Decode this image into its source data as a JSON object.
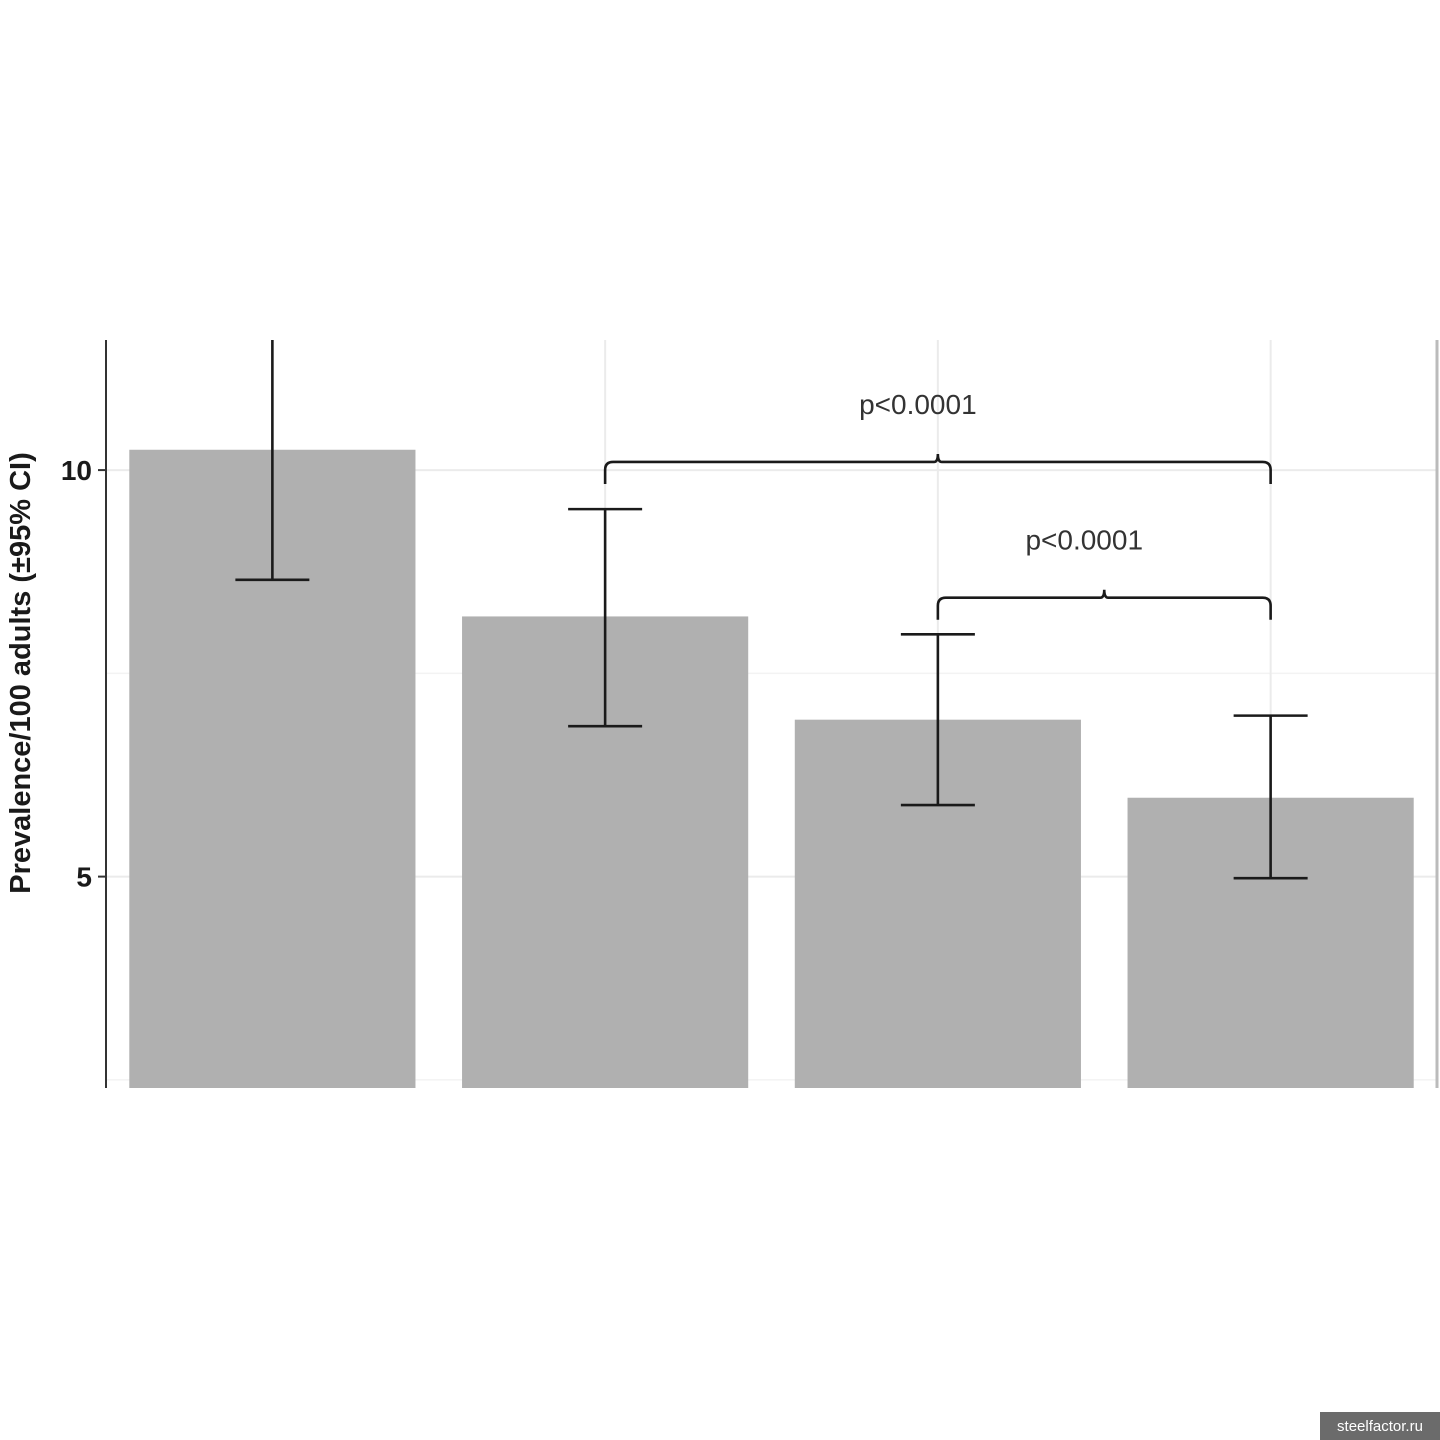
{
  "chart_data": {
    "type": "bar",
    "title": "",
    "xlabel": "",
    "ylabel": "Prevalence/100 adults (±95% CI)",
    "ylim": [
      2.4,
      11.6
    ],
    "yticks": [
      5,
      10
    ],
    "grid": true,
    "values": [
      10.25,
      8.2,
      6.93,
      5.97
    ],
    "ci_low": [
      8.65,
      6.85,
      5.88,
      4.98
    ],
    "ci_high": [
      11.6,
      9.52,
      7.98,
      6.98
    ],
    "comparisons": [
      {
        "from_bar": 2,
        "to_bar": 4,
        "label": "p<0.0001",
        "level": 10.1
      },
      {
        "from_bar": 3,
        "to_bar": 4,
        "label": "p<0.0001",
        "level": 8.43
      }
    ],
    "colors": {
      "bar": "#b0b0b0",
      "error": "#1a1a1a",
      "grid": "#ebebeb"
    }
  },
  "watermark": "steelfactor.ru"
}
